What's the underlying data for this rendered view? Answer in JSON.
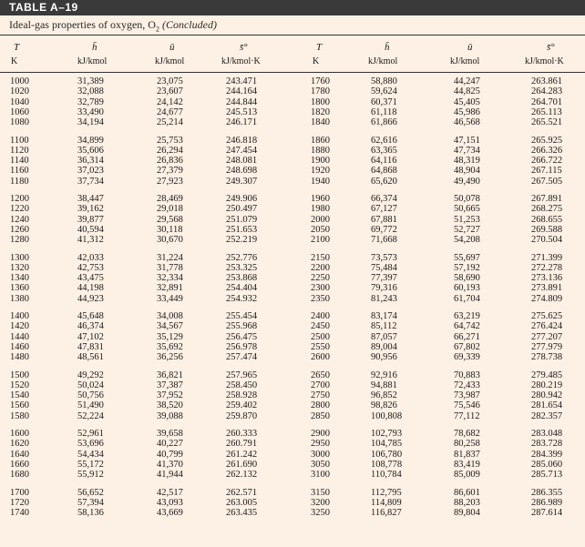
{
  "title": "TABLE A–19",
  "caption": {
    "text": "Ideal-gas properties of oxygen, O",
    "sub": "2",
    "tail": "(Concluded)"
  },
  "headers": {
    "symbols": [
      "T",
      "h̄",
      "ū",
      "s̄°",
      "T",
      "h̄",
      "ū",
      "s̄°"
    ],
    "units": [
      "K",
      "kJ/kmol",
      "kJ/kmol",
      "kJ/kmol·K",
      "K",
      "kJ/kmol",
      "kJ/kmol",
      "kJ/kmol·K"
    ]
  },
  "groups": [
    [
      [
        "1000",
        "31,389",
        "23,075",
        "243.471",
        "1760",
        "58,880",
        "44,247",
        "263.861"
      ],
      [
        "1020",
        "32,088",
        "23,607",
        "244.164",
        "1780",
        "59,624",
        "44,825",
        "264.283"
      ],
      [
        "1040",
        "32,789",
        "24,142",
        "244.844",
        "1800",
        "60,371",
        "45,405",
        "264.701"
      ],
      [
        "1060",
        "33,490",
        "24,677",
        "245.513",
        "1820",
        "61,118",
        "45,986",
        "265.113"
      ],
      [
        "1080",
        "34,194",
        "25,214",
        "246.171",
        "1840",
        "61,866",
        "46,568",
        "265.521"
      ]
    ],
    [
      [
        "1100",
        "34,899",
        "25,753",
        "246.818",
        "1860",
        "62,616",
        "47,151",
        "265.925"
      ],
      [
        "1120",
        "35,606",
        "26,294",
        "247.454",
        "1880",
        "63,365",
        "47,734",
        "266.326"
      ],
      [
        "1140",
        "36,314",
        "26,836",
        "248.081",
        "1900",
        "64,116",
        "48,319",
        "266.722"
      ],
      [
        "1160",
        "37,023",
        "27,379",
        "248.698",
        "1920",
        "64,868",
        "48,904",
        "267.115"
      ],
      [
        "1180",
        "37,734",
        "27,923",
        "249.307",
        "1940",
        "65,620",
        "49,490",
        "267.505"
      ]
    ],
    [
      [
        "1200",
        "38,447",
        "28,469",
        "249.906",
        "1960",
        "66,374",
        "50,078",
        "267.891"
      ],
      [
        "1220",
        "39,162",
        "29,018",
        "250.497",
        "1980",
        "67,127",
        "50,665",
        "268.275"
      ],
      [
        "1240",
        "39,877",
        "29,568",
        "251.079",
        "2000",
        "67,881",
        "51,253",
        "268.655"
      ],
      [
        "1260",
        "40,594",
        "30,118",
        "251.653",
        "2050",
        "69,772",
        "52,727",
        "269.588"
      ],
      [
        "1280",
        "41,312",
        "30,670",
        "252.219",
        "2100",
        "71,668",
        "54,208",
        "270.504"
      ]
    ],
    [
      [
        "1300",
        "42,033",
        "31,224",
        "252.776",
        "2150",
        "73,573",
        "55,697",
        "271.399"
      ],
      [
        "1320",
        "42,753",
        "31,778",
        "253.325",
        "2200",
        "75,484",
        "57,192",
        "272.278"
      ],
      [
        "1340",
        "43,475",
        "32,334",
        "253.868",
        "2250",
        "77,397",
        "58,690",
        "273.136"
      ],
      [
        "1360",
        "44,198",
        "32,891",
        "254.404",
        "2300",
        "79,316",
        "60,193",
        "273.891"
      ],
      [
        "1380",
        "44,923",
        "33,449",
        "254.932",
        "2350",
        "81,243",
        "61,704",
        "274.809"
      ]
    ],
    [
      [
        "1400",
        "45,648",
        "34,008",
        "255.454",
        "2400",
        "83,174",
        "63,219",
        "275.625"
      ],
      [
        "1420",
        "46,374",
        "34,567",
        "255.968",
        "2450",
        "85,112",
        "64,742",
        "276.424"
      ],
      [
        "1440",
        "47,102",
        "35,129",
        "256.475",
        "2500",
        "87,057",
        "66,271",
        "277.207"
      ],
      [
        "1460",
        "47,831",
        "35,692",
        "256.978",
        "2550",
        "89,004",
        "67,802",
        "277.979"
      ],
      [
        "1480",
        "48,561",
        "36,256",
        "257.474",
        "2600",
        "90,956",
        "69,339",
        "278.738"
      ]
    ],
    [
      [
        "1500",
        "49,292",
        "36,821",
        "257.965",
        "2650",
        "92,916",
        "70,883",
        "279.485"
      ],
      [
        "1520",
        "50,024",
        "37,387",
        "258.450",
        "2700",
        "94,881",
        "72,433",
        "280.219"
      ],
      [
        "1540",
        "50,756",
        "37,952",
        "258.928",
        "2750",
        "96,852",
        "73,987",
        "280.942"
      ],
      [
        "1560",
        "51,490",
        "38,520",
        "259.402",
        "2800",
        "98,826",
        "75,546",
        "281.654"
      ],
      [
        "1580",
        "52,224",
        "39,088",
        "259.870",
        "2850",
        "100,808",
        "77,112",
        "282.357"
      ]
    ],
    [
      [
        "1600",
        "52,961",
        "39,658",
        "260.333",
        "2900",
        "102,793",
        "78,682",
        "283.048"
      ],
      [
        "1620",
        "53,696",
        "40,227",
        "260.791",
        "2950",
        "104,785",
        "80,258",
        "283.728"
      ],
      [
        "1640",
        "54,434",
        "40,799",
        "261.242",
        "3000",
        "106,780",
        "81,837",
        "284.399"
      ],
      [
        "1660",
        "55,172",
        "41,370",
        "261.690",
        "3050",
        "108,778",
        "83,419",
        "285.060"
      ],
      [
        "1680",
        "55,912",
        "41,944",
        "262.132",
        "3100",
        "110,784",
        "85,009",
        "285.713"
      ]
    ],
    [
      [
        "1700",
        "56,652",
        "42,517",
        "262.571",
        "3150",
        "112,795",
        "86,601",
        "286.355"
      ],
      [
        "1720",
        "57,394",
        "43,093",
        "263.005",
        "3200",
        "114,809",
        "88,203",
        "286.989"
      ],
      [
        "1740",
        "58,136",
        "43,669",
        "263.435",
        "3250",
        "116,827",
        "89,804",
        "287.614"
      ]
    ]
  ]
}
